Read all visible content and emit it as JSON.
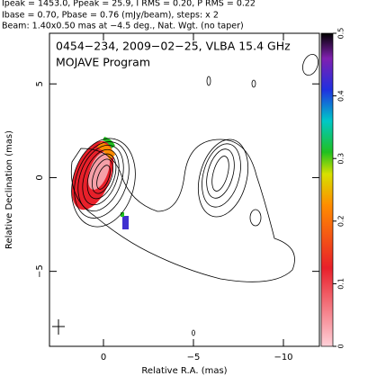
{
  "header": [
    "Ipeak = 1453.0, Ppeak = 25.9, I RMS = 0.20, P RMS = 0.22",
    "Ibase = 0.70, Pbase = 0.76 (mJy/beam), steps: x 2",
    "Beam: 1.40x0.50 mas at −4.5 deg., Nat. Wgt. (no taper)"
  ],
  "chart_data": {
    "type": "contour",
    "title": "0454−234, 2009−02−25, VLBA 15.4 GHz",
    "subtitle": "MOJAVE Program",
    "x_label": "Relative R.A. (mas)",
    "y_label": "Relative Declination (mas)",
    "xlim": [
      3,
      -12
    ],
    "xticks": [
      0,
      {
        "value": -5,
        "label": "−5"
      },
      {
        "value": -10,
        "label": "−10"
      }
    ],
    "ylim": [
      -9,
      7.7
    ],
    "yticks": [
      5,
      0,
      {
        "value": -5,
        "label": "−5"
      }
    ],
    "colorbar_lim": [
      0,
      0.5
    ],
    "colorbar_ticks": [
      0,
      0.1,
      0.2,
      0.3,
      0.4,
      0.5
    ]
  }
}
